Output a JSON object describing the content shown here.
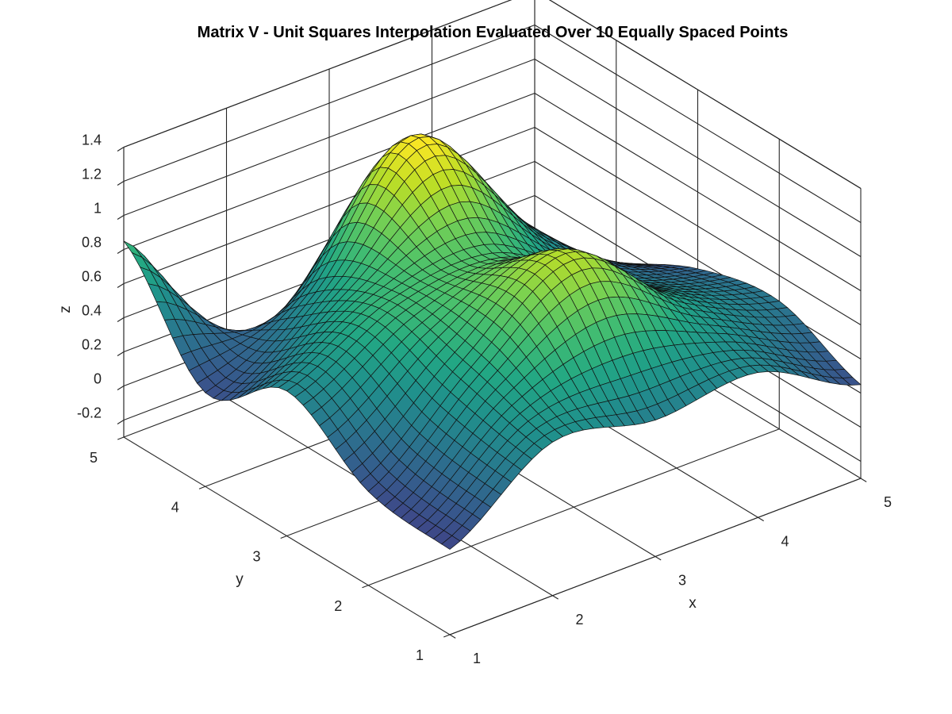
{
  "chart_data": {
    "type": "surface",
    "title": "Matrix V - Unit Squares Interpolation Evaluated Over 10 Equally Spaced Points",
    "xlabel": "x",
    "ylabel": "y",
    "zlabel": "z",
    "xlim": [
      1,
      5
    ],
    "ylim": [
      1,
      5
    ],
    "zlim": [
      -0.3,
      1.4
    ],
    "x_ticks": [
      "1",
      "2",
      "3",
      "4",
      "5"
    ],
    "y_ticks": [
      "1",
      "2",
      "3",
      "4",
      "5"
    ],
    "z_ticks": [
      "-0.2",
      "0",
      "0.2",
      "0.4",
      "0.6",
      "0.8",
      "1",
      "1.2",
      "1.4"
    ],
    "grid": true,
    "colormap": "viridis",
    "grid_lines": 41,
    "surface": {
      "x": [
        1,
        2,
        3,
        4,
        5
      ],
      "y": [
        1,
        2,
        3,
        4,
        5
      ],
      "z": [
        [
          0.2,
          0.6,
          0.5,
          0.55,
          0.25
        ],
        [
          0.25,
          0.75,
          1.15,
          0.7,
          0.45
        ],
        [
          0.55,
          0.85,
          0.9,
          0.55,
          0.35
        ],
        [
          0.25,
          0.6,
          1.3,
          0.6,
          0.1
        ],
        [
          0.85,
          0.0,
          0.25,
          0.4,
          -0.1
        ]
      ]
    }
  }
}
